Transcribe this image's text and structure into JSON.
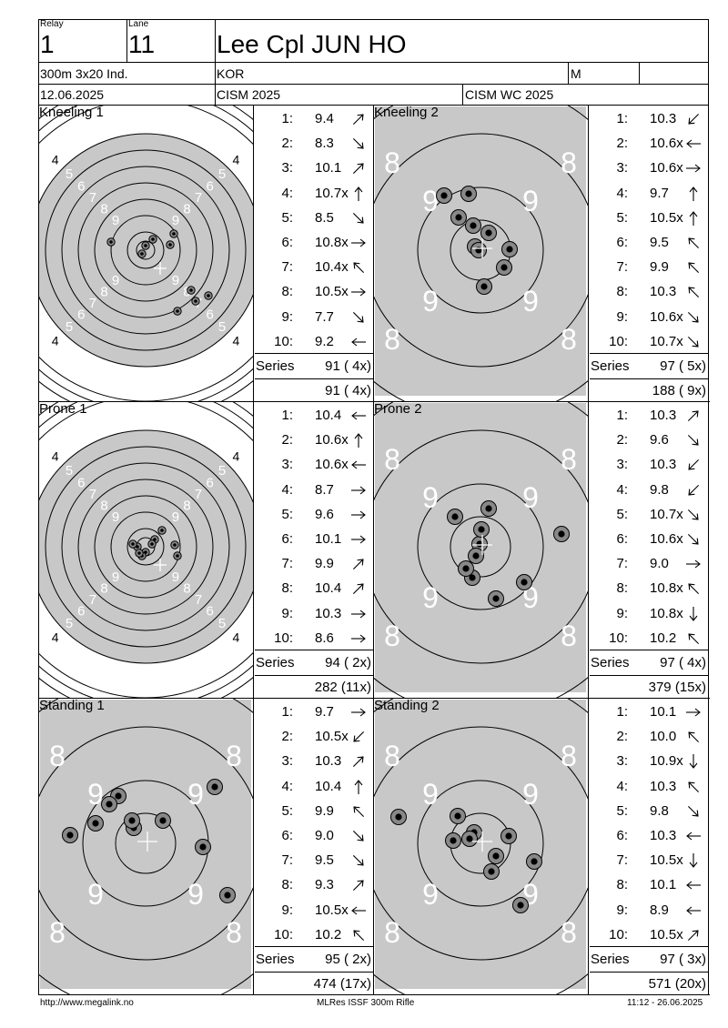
{
  "header": {
    "relay_label": "Relay",
    "relay": "1",
    "lane_label": "Lane",
    "lane": "11",
    "name": "Lee Cpl JUN HO",
    "event": "300m 3x20 Ind.",
    "nation": "KOR",
    "gender": "M",
    "date": "12.06.2025",
    "competition": "CISM 2025",
    "competition2": "CISM WC 2025"
  },
  "panels": [
    {
      "title": "Kneeling 1",
      "target": "rings",
      "shots": [
        {
          "n": "1:",
          "v": "9.4",
          "d": "NE"
        },
        {
          "n": "2:",
          "v": "8.3",
          "d": "SE"
        },
        {
          "n": "3:",
          "v": "10.1",
          "d": "NE"
        },
        {
          "n": "4:",
          "v": "10.7x",
          "d": "N"
        },
        {
          "n": "5:",
          "v": "8.5",
          "d": "SE"
        },
        {
          "n": "6:",
          "v": "10.8x",
          "d": "E"
        },
        {
          "n": "7:",
          "v": "10.4x",
          "d": "NW"
        },
        {
          "n": "8:",
          "v": "10.5x",
          "d": "E"
        },
        {
          "n": "9:",
          "v": "7.7",
          "d": "SE"
        },
        {
          "n": "10:",
          "v": "9.2",
          "d": "W"
        }
      ],
      "series_label": "Series",
      "series": "91 ( 4x)",
      "total": "91 ( 4x)"
    },
    {
      "title": "Kneeling 2",
      "target": "zoom",
      "shots": [
        {
          "n": "1:",
          "v": "10.3",
          "d": "SW"
        },
        {
          "n": "2:",
          "v": "10.6x",
          "d": "W"
        },
        {
          "n": "3:",
          "v": "10.6x",
          "d": "E"
        },
        {
          "n": "4:",
          "v": "9.7",
          "d": "N"
        },
        {
          "n": "5:",
          "v": "10.5x",
          "d": "N"
        },
        {
          "n": "6:",
          "v": "9.5",
          "d": "NW"
        },
        {
          "n": "7:",
          "v": "9.9",
          "d": "NW"
        },
        {
          "n": "8:",
          "v": "10.3",
          "d": "NW"
        },
        {
          "n": "9:",
          "v": "10.6x",
          "d": "SE"
        },
        {
          "n": "10:",
          "v": "10.7x",
          "d": "SE"
        }
      ],
      "series_label": "Series",
      "series": "97 ( 5x)",
      "total": "188 ( 9x)"
    },
    {
      "title": "Prone 1",
      "target": "rings",
      "shots": [
        {
          "n": "1:",
          "v": "10.4",
          "d": "W"
        },
        {
          "n": "2:",
          "v": "10.6x",
          "d": "N"
        },
        {
          "n": "3:",
          "v": "10.6x",
          "d": "W"
        },
        {
          "n": "4:",
          "v": "8.7",
          "d": "E"
        },
        {
          "n": "5:",
          "v": "9.6",
          "d": "E"
        },
        {
          "n": "6:",
          "v": "10.1",
          "d": "E"
        },
        {
          "n": "7:",
          "v": "9.9",
          "d": "NE"
        },
        {
          "n": "8:",
          "v": "10.4",
          "d": "NE"
        },
        {
          "n": "9:",
          "v": "10.3",
          "d": "E"
        },
        {
          "n": "10:",
          "v": "8.6",
          "d": "E"
        }
      ],
      "series_label": "Series",
      "series": "94 ( 2x)",
      "total": "282 (11x)"
    },
    {
      "title": "Prone 2",
      "target": "zoom",
      "shots": [
        {
          "n": "1:",
          "v": "10.3",
          "d": "NE"
        },
        {
          "n": "2:",
          "v": "9.6",
          "d": "SE"
        },
        {
          "n": "3:",
          "v": "10.3",
          "d": "SW"
        },
        {
          "n": "4:",
          "v": "9.8",
          "d": "SW"
        },
        {
          "n": "5:",
          "v": "10.7x",
          "d": "SE"
        },
        {
          "n": "6:",
          "v": "10.6x",
          "d": "SE"
        },
        {
          "n": "7:",
          "v": "9.0",
          "d": "E"
        },
        {
          "n": "8:",
          "v": "10.8x",
          "d": "NW"
        },
        {
          "n": "9:",
          "v": "10.8x",
          "d": "S"
        },
        {
          "n": "10:",
          "v": "10.2",
          "d": "NW"
        }
      ],
      "series_label": "Series",
      "series": "97 ( 4x)",
      "total": "379 (15x)"
    },
    {
      "title": "Standing 1",
      "target": "zoom",
      "shots": [
        {
          "n": "1:",
          "v": "9.7",
          "d": "E"
        },
        {
          "n": "2:",
          "v": "10.5x",
          "d": "SW"
        },
        {
          "n": "3:",
          "v": "10.3",
          "d": "NE"
        },
        {
          "n": "4:",
          "v": "10.4",
          "d": "N"
        },
        {
          "n": "5:",
          "v": "9.9",
          "d": "NW"
        },
        {
          "n": "6:",
          "v": "9.0",
          "d": "SE"
        },
        {
          "n": "7:",
          "v": "9.5",
          "d": "SE"
        },
        {
          "n": "8:",
          "v": "9.3",
          "d": "NE"
        },
        {
          "n": "9:",
          "v": "10.5x",
          "d": "W"
        },
        {
          "n": "10:",
          "v": "10.2",
          "d": "NW"
        }
      ],
      "series_label": "Series",
      "series": "95 ( 2x)",
      "total": "474 (17x)"
    },
    {
      "title": "Standing 2",
      "target": "zoom",
      "shots": [
        {
          "n": "1:",
          "v": "10.1",
          "d": "E"
        },
        {
          "n": "2:",
          "v": "10.0",
          "d": "NW"
        },
        {
          "n": "3:",
          "v": "10.9x",
          "d": "S"
        },
        {
          "n": "4:",
          "v": "10.3",
          "d": "NW"
        },
        {
          "n": "5:",
          "v": "9.8",
          "d": "SE"
        },
        {
          "n": "6:",
          "v": "10.3",
          "d": "W"
        },
        {
          "n": "7:",
          "v": "10.5x",
          "d": "S"
        },
        {
          "n": "8:",
          "v": "10.1",
          "d": "W"
        },
        {
          "n": "9:",
          "v": "8.9",
          "d": "W"
        },
        {
          "n": "10:",
          "v": "10.5x",
          "d": "NE"
        }
      ],
      "series_label": "Series",
      "series": "97 ( 3x)",
      "total": "571 (20x)"
    }
  ],
  "ring_labels": {
    "rings_view": [
      "4",
      "5",
      "6",
      "7",
      "8",
      "9"
    ],
    "zoom_view": [
      "8",
      "9"
    ]
  },
  "footer": {
    "left": "http://www.megalink.no",
    "center": "MLRes ISSF 300m Rifle",
    "right": "11:12 - 26.06.2025"
  },
  "colors": {
    "target_gray": "#c8c8c8",
    "ring_line": "#000000",
    "ring_number": "#ffffff",
    "shot_outer": "#888888",
    "shot_inner": "#000000"
  }
}
